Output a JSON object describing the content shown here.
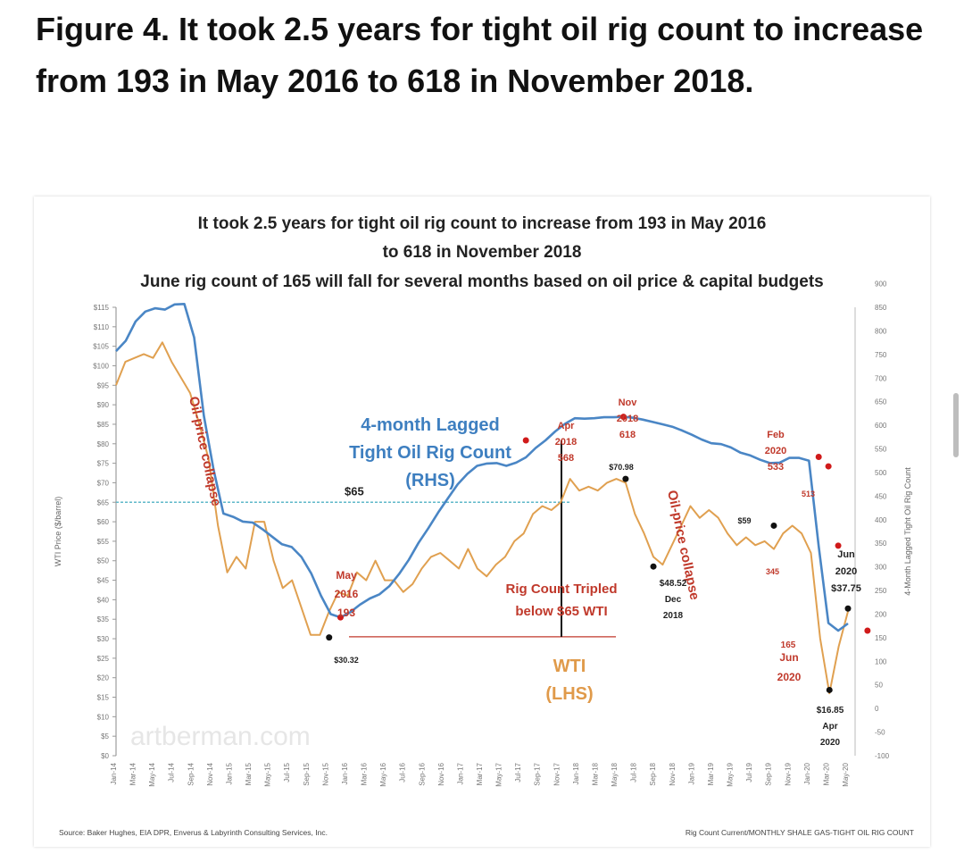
{
  "headline": "Figure 4. It took 2.5 years for tight oil rig count to increase from 193 in May 2016 to 618 in November 2018.",
  "chart_data": {
    "type": "line",
    "title": [
      "It took 2.5 years for tight oil rig count to increase from 193 in May 2016",
      "to 618 in November 2018"
    ],
    "subtitle": "June rig count of 165 will fall for several months based on oil price & capital budgets",
    "ylabel": "WTI Price ($/barrel)",
    "y2label": "4-Month Lagged Tight Oil Rig Count",
    "ylim": [
      0,
      115
    ],
    "y2lim": [
      -100,
      850
    ],
    "yticks": [
      "$0",
      "$5",
      "$10",
      "$15",
      "$20",
      "$25",
      "$30",
      "$35",
      "$40",
      "$45",
      "$50",
      "$55",
      "$60",
      "$65",
      "$70",
      "$75",
      "$80",
      "$85",
      "$90",
      "$95",
      "$100",
      "$105",
      "$110",
      "$115"
    ],
    "y2ticks": [
      "-100",
      "-50",
      "0",
      "50",
      "100",
      "150",
      "200",
      "250",
      "300",
      "350",
      "400",
      "450",
      "500",
      "550",
      "600",
      "650",
      "700",
      "750",
      "800",
      "850",
      "900"
    ],
    "xticks": [
      "Jan-14",
      "Mar-14",
      "May-14",
      "Jul-14",
      "Sep-14",
      "Nov-14",
      "Jan-15",
      "Mar-15",
      "May-15",
      "Jul-15",
      "Sep-15",
      "Nov-15",
      "Jan-16",
      "Mar-16",
      "May-16",
      "Jul-16",
      "Sep-16",
      "Nov-16",
      "Jan-17",
      "Mar-17",
      "May-17",
      "Jul-17",
      "Sep-17",
      "Nov-17",
      "Jan-18",
      "Mar-18",
      "May-18",
      "Jul-18",
      "Sep-18",
      "Nov-18",
      "Jan-19",
      "Mar-19",
      "May-19",
      "Jul-19",
      "Sep-19",
      "Nov-19",
      "Jan-20",
      "Mar-20",
      "May-20"
    ],
    "grid": false,
    "series": [
      {
        "name": "WTI (LHS)",
        "axis": "left",
        "color": "#e0a050",
        "values": [
          95,
          101,
          102,
          103,
          102,
          106,
          101,
          97,
          93,
          85,
          76,
          59,
          47,
          51,
          48,
          60,
          60,
          50,
          43,
          45,
          38,
          31,
          31,
          37,
          42,
          41,
          47,
          45,
          50,
          45,
          45,
          42,
          44,
          48,
          51,
          52,
          50,
          48,
          53,
          48,
          46,
          49,
          51,
          55,
          57,
          62,
          64,
          63,
          65,
          71,
          68,
          69,
          68,
          70,
          71,
          70,
          62,
          57,
          51,
          49,
          54,
          59,
          64,
          61,
          63,
          61,
          57,
          54,
          56,
          54,
          55,
          53,
          57,
          59,
          57,
          52,
          30,
          16,
          28,
          37
        ]
      },
      {
        "name": "4-month Lagged Tight Oil Rig Count (RHS)",
        "axis": "right",
        "color": "#4a86c5",
        "values": [
          757,
          779,
          820,
          841,
          848,
          845,
          856,
          857,
          786,
          620,
          506,
          413,
          406,
          396,
          394,
          380,
          364,
          348,
          342,
          321,
          286,
          239,
          200,
          193,
          204,
          220,
          233,
          242,
          259,
          285,
          315,
          351,
          382,
          415,
          445,
          475,
          497,
          514,
          519,
          520,
          514,
          521,
          532,
          552,
          568,
          587,
          603,
          615,
          614,
          615,
          617,
          617,
          618,
          616,
          612,
          607,
          602,
          597,
          589,
          580,
          570,
          562,
          560,
          553,
          542,
          536,
          527,
          520,
          521,
          531,
          531,
          525,
          344,
          181,
          165,
          180
        ]
      }
    ],
    "annotations": {
      "series_label_rig": [
        "4-month Lagged",
        "Tight Oil Rig Count",
        "(RHS)"
      ],
      "series_label_wti": [
        "WTI",
        "(LHS)"
      ],
      "oil_collapse_1": "Oil-price collapse",
      "oil_collapse_2": "Oil-price collapse",
      "ref_line_label": "$65",
      "tripled": [
        "Rig Count Tripled",
        "below $65 WTI"
      ],
      "may_2016": [
        "May",
        "2016",
        "193"
      ],
      "apr_2018": [
        "Apr",
        "2018",
        "568"
      ],
      "nov_2018": [
        "Nov",
        "2018",
        "618"
      ],
      "feb_2020": [
        "Feb",
        "2020",
        "533"
      ],
      "val_513": "513",
      "val_345": "345",
      "val_165": "165",
      "jun_2020_bottom": [
        "Jun",
        "2020"
      ],
      "wti_3032": "$30.32",
      "wti_7098": "$70.98",
      "wti_4852": [
        "$48.52",
        "Dec",
        "2018"
      ],
      "wti_59": "$59",
      "wti_1685": [
        "$16.85",
        "Apr",
        "2020"
      ],
      "wti_3775": [
        "Jun",
        "2020",
        "$37.75"
      ],
      "watermark": "artberman.com",
      "source": "Source: Baker Hughes, EIA DPR, Enverus & Labyrinth Consulting Services, Inc.",
      "rig_count_note": "Rig Count Current/MONTHLY SHALE GAS-TIGHT OIL RIG COUNT"
    },
    "colors": {
      "rig_line": "#4a86c5",
      "wti_line": "#e0a050",
      "red_markers": "#d01a1a",
      "ref_line": "#5fb8c9",
      "floor_line": "#c0392b"
    }
  }
}
